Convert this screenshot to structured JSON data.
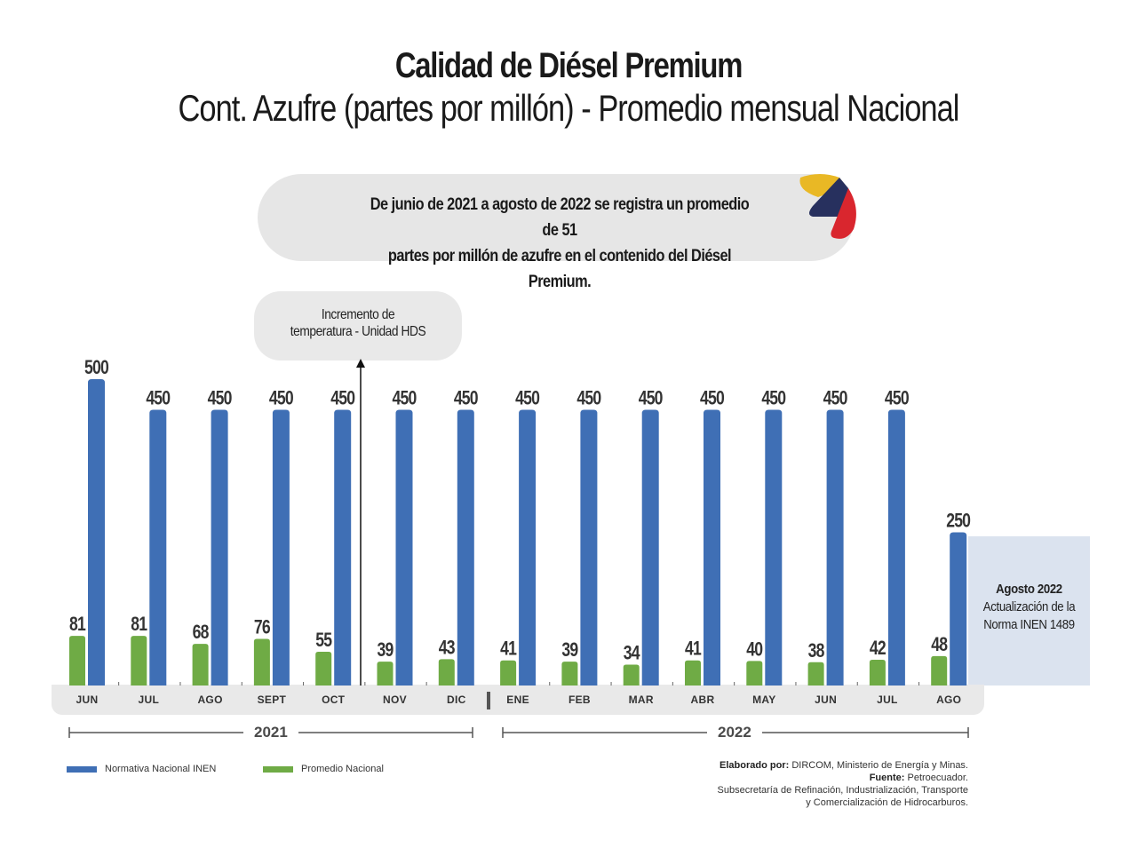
{
  "header": {
    "title": "Calidad de Diésel Premium",
    "subtitle": "Cont. Azufre (partes por millón) - Promedio mensual Nacional"
  },
  "summary": {
    "line1": "De junio de 2021 a agosto de 2022 se registra un promedio de 51",
    "line2": "partes por millón de azufre en el contenido del Diésel Premium."
  },
  "annotation": {
    "line1": "Incremento de",
    "line2": "temperatura - Unidad HDS"
  },
  "norm_update": {
    "title": "Agosto 2022",
    "line1": "Actualización de la",
    "line2": "Norma INEN 1489"
  },
  "years": [
    "2021",
    "2022"
  ],
  "legend": [
    {
      "label": "Normativa Nacional INEN",
      "color": "#3f6fb5"
    },
    {
      "label": "Promedio Nacional",
      "color": "#6fab45"
    }
  ],
  "credits": {
    "elaborado_label": "Elaborado por:",
    "elaborado_value": " DIRCOM, Ministerio de Energía y Minas.",
    "fuente_label": "Fuente:",
    "fuente_value": " Petroecuador.",
    "line3": "Subsecretaría de Refinación, Industrialización, Transporte",
    "line4": "y Comercialización de Hidrocarburos."
  },
  "colors": {
    "inen": "#3f6fb5",
    "promedio": "#6fab45",
    "logo_yellow": "#e9b825",
    "logo_navy": "#27305e",
    "logo_red": "#d9262e"
  },
  "chart_data": {
    "type": "bar",
    "title": "Calidad de Diésel Premium",
    "subtitle": "Cont. Azufre (partes por millón) - Promedio mensual Nacional",
    "categories": [
      "JUN",
      "JUL",
      "AGO",
      "SEPT",
      "OCT",
      "NOV",
      "DIC",
      "ENE",
      "FEB",
      "MAR",
      "ABR",
      "MAY",
      "JUN",
      "JUL",
      "AGO"
    ],
    "category_years": [
      "2021",
      "2021",
      "2021",
      "2021",
      "2021",
      "2021",
      "2021",
      "2022",
      "2022",
      "2022",
      "2022",
      "2022",
      "2022",
      "2022",
      "2022"
    ],
    "series": [
      {
        "name": "Promedio Nacional",
        "color": "#6fab45",
        "values": [
          81,
          81,
          68,
          76,
          55,
          39,
          43,
          41,
          39,
          34,
          41,
          40,
          38,
          42,
          48
        ]
      },
      {
        "name": "Normativa Nacional INEN",
        "color": "#3f6fb5",
        "values": [
          500,
          450,
          450,
          450,
          450,
          450,
          450,
          450,
          450,
          450,
          450,
          450,
          450,
          450,
          250
        ]
      }
    ],
    "ylim": [
      0,
      500
    ],
    "xlabel": "",
    "ylabel": "",
    "grid": false,
    "legend_position": "bottom-left",
    "annotation_after_category": "OCT"
  }
}
